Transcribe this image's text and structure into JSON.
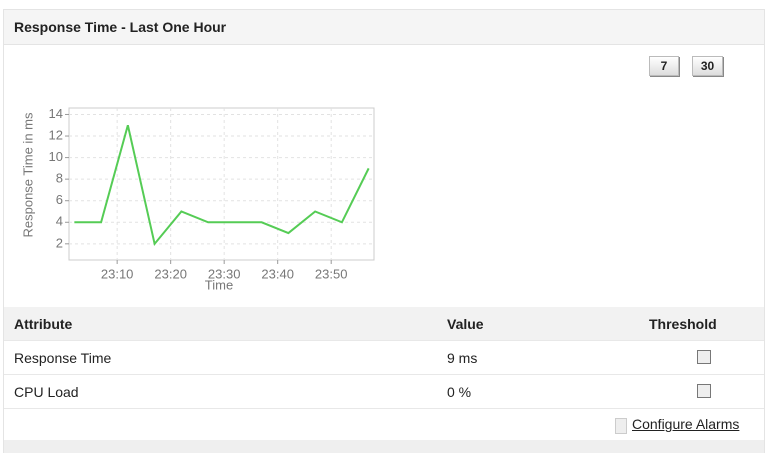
{
  "header": {
    "title": "Response Time - Last One Hour"
  },
  "buttons": [
    "7",
    "30"
  ],
  "chart_data": {
    "type": "line",
    "x_label": "Time",
    "y_label": "Response Time in ms",
    "x": [
      "23:02",
      "23:07",
      "23:12",
      "23:17",
      "23:22",
      "23:27",
      "23:32",
      "23:37",
      "23:42",
      "23:47",
      "23:52",
      "23:57"
    ],
    "values": [
      4,
      4,
      13,
      2,
      5,
      4,
      4,
      4,
      3,
      5,
      4,
      9
    ],
    "color": "#55cc55",
    "xlim": [
      "23:01",
      "23:58"
    ],
    "xticks": [
      "23:10",
      "23:20",
      "23:30",
      "23:40",
      "23:50"
    ],
    "ylim": [
      0.5,
      14.6
    ],
    "yticks": [
      2,
      4,
      6,
      8,
      10,
      12,
      14
    ],
    "grid": true
  },
  "table": {
    "columns": [
      "Attribute",
      "Value",
      "Threshold"
    ],
    "rows": [
      [
        "Response Time",
        "9 ms"
      ],
      [
        "CPU Load",
        "0 %"
      ]
    ]
  },
  "link": "Configure Alarms"
}
